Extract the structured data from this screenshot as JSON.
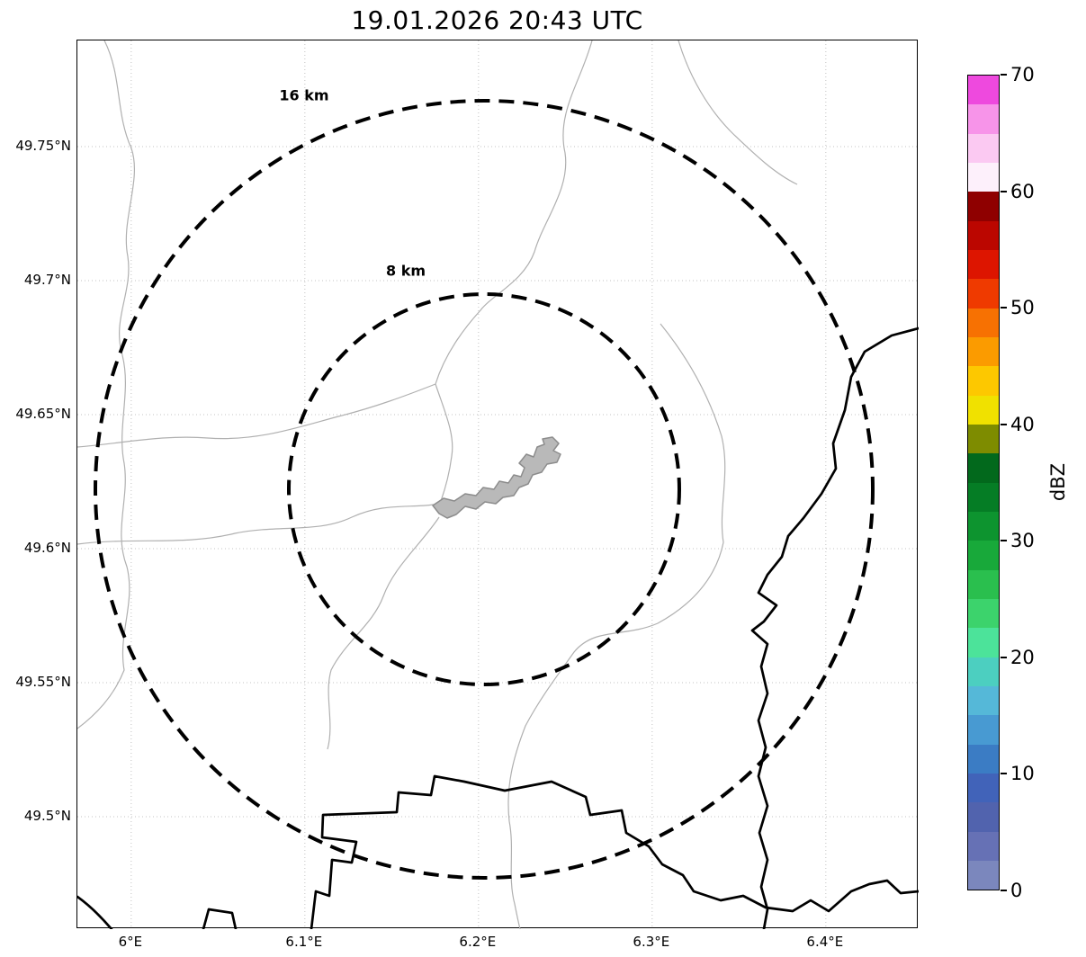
{
  "title": "19.01.2026 20:43 UTC",
  "map": {
    "x_ticks": [
      {
        "label": "6°E",
        "lon": 6.0
      },
      {
        "label": "6.1°E",
        "lon": 6.1
      },
      {
        "label": "6.2°E",
        "lon": 6.2
      },
      {
        "label": "6.3°E",
        "lon": 6.3
      },
      {
        "label": "6.4°E",
        "lon": 6.4
      }
    ],
    "y_ticks": [
      {
        "label": "49.75°N",
        "lat": 49.75
      },
      {
        "label": "49.7°N",
        "lat": 49.7
      },
      {
        "label": "49.65°N",
        "lat": 49.65
      },
      {
        "label": "49.6°N",
        "lat": 49.6
      },
      {
        "label": "49.55°N",
        "lat": 49.55
      },
      {
        "label": "49.5°N",
        "lat": 49.5
      }
    ],
    "range_rings": [
      {
        "label": "16 km",
        "radius_km": 16
      },
      {
        "label": "8 km",
        "radius_km": 8
      }
    ]
  },
  "colorbar": {
    "label": "dBZ",
    "min": 0,
    "max": 70,
    "ticks": [
      0,
      10,
      20,
      30,
      40,
      50,
      60,
      70
    ],
    "segment_colors_bottom_to_top": [
      "#7b87bd",
      "#6671b5",
      "#5163ae",
      "#4163b9",
      "#3b7cc4",
      "#489ad2",
      "#55b8d8",
      "#4ccfc0",
      "#4ce39a",
      "#3cd36c",
      "#2abf4e",
      "#18a93a",
      "#0d942f",
      "#057d25",
      "#02691c",
      "#7e8c00",
      "#f0e100",
      "#fdc800",
      "#fb9b00",
      "#f77102",
      "#ef3a00",
      "#dd1500",
      "#bb0600",
      "#8f0000",
      "#fdf0fb",
      "#fbc9f2",
      "#f794e9",
      "#ee49de"
    ]
  },
  "map_data": {
    "type": "radar-range-map",
    "timestamp_utc": "19.01.2026 20:43 UTC",
    "lon_range_deg_e": [
      5.969,
      6.453
    ],
    "lat_range_deg_n": [
      49.458,
      49.79
    ],
    "ring_center_lonlat": [
      6.203,
      49.622
    ],
    "range_rings_km": [
      8,
      16
    ],
    "colorbar_scale": {
      "label": "dBZ",
      "range": [
        0,
        70
      ],
      "tick_step": 10
    },
    "radar_echoes_visible": false
  }
}
